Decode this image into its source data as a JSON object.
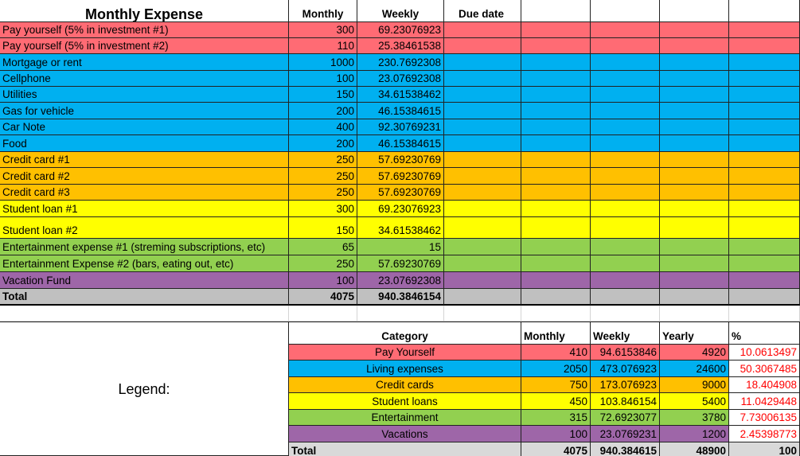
{
  "colors": {
    "pay": "#ff6b74",
    "living": "#00b0f0",
    "credit": "#ffc000",
    "student": "#ffff00",
    "entertainment": "#92d050",
    "vacation": "#9e66a8",
    "total": "#c0c0c0",
    "legend_total": "#d9d9d9",
    "percent_text": "#ff0000"
  },
  "expense_table": {
    "title": "Monthly Expense",
    "headers": {
      "monthly": "Monthly",
      "weekly": "Weekly",
      "due": "Due date"
    },
    "rows": [
      {
        "name": "Pay yourself (5% in investment #1)",
        "monthly": "300",
        "weekly": "69.23076923",
        "group": "pay"
      },
      {
        "name": "Pay yourself (5% in investment #2)",
        "monthly": "110",
        "weekly": "25.38461538",
        "group": "pay"
      },
      {
        "name": "Mortgage or rent",
        "monthly": "1000",
        "weekly": "230.7692308",
        "group": "living"
      },
      {
        "name": "Cellphone",
        "monthly": "100",
        "weekly": "23.07692308",
        "group": "living"
      },
      {
        "name": "Utilities",
        "monthly": "150",
        "weekly": "34.61538462",
        "group": "living"
      },
      {
        "name": "Gas for vehicle",
        "monthly": "200",
        "weekly": "46.15384615",
        "group": "living"
      },
      {
        "name": "Car Note",
        "monthly": "400",
        "weekly": "92.30769231",
        "group": "living"
      },
      {
        "name": "Food",
        "monthly": "200",
        "weekly": "46.15384615",
        "group": "living"
      },
      {
        "name": "Credit card #1",
        "monthly": "250",
        "weekly": "57.69230769",
        "group": "credit"
      },
      {
        "name": "Credit card #2",
        "monthly": "250",
        "weekly": "57.69230769",
        "group": "credit"
      },
      {
        "name": "Credit card #3",
        "monthly": "250",
        "weekly": "57.69230769",
        "group": "credit"
      },
      {
        "name": "Student loan #1",
        "monthly": "300",
        "weekly": "69.23076923",
        "group": "student"
      },
      {
        "name": "Student loan #2",
        "monthly": "150",
        "weekly": "34.61538462",
        "group": "student"
      },
      {
        "name": "Entertainment expense #1 (streming subscriptions, etc)",
        "monthly": "65",
        "weekly": "15",
        "group": "entertainment"
      },
      {
        "name": "Entertainment Expense #2 (bars, eating out, etc)",
        "monthly": "250",
        "weekly": "57.69230769",
        "group": "entertainment"
      },
      {
        "name": "Vacation Fund",
        "monthly": "100",
        "weekly": "23.07692308",
        "group": "vacation"
      }
    ],
    "total": {
      "label": "Total",
      "monthly": "4075",
      "weekly": "940.3846154"
    }
  },
  "legend": {
    "label": "Legend:",
    "headers": {
      "category": "Category",
      "monthly": "Monthly",
      "weekly": "Weekly",
      "yearly": "Yearly",
      "percent": "%"
    },
    "rows": [
      {
        "category": "Pay Yourself",
        "monthly": "410",
        "weekly": "94.6153846",
        "yearly": "4920",
        "percent": "10.0613497",
        "group": "pay"
      },
      {
        "category": "Living expenses",
        "monthly": "2050",
        "weekly": "473.076923",
        "yearly": "24600",
        "percent": "50.3067485",
        "group": "living"
      },
      {
        "category": "Credit cards",
        "monthly": "750",
        "weekly": "173.076923",
        "yearly": "9000",
        "percent": "18.404908",
        "group": "credit"
      },
      {
        "category": "Student loans",
        "monthly": "450",
        "weekly": "103.846154",
        "yearly": "5400",
        "percent": "11.0429448",
        "group": "student"
      },
      {
        "category": "Entertainment",
        "monthly": "315",
        "weekly": "72.6923077",
        "yearly": "3780",
        "percent": "7.73006135",
        "group": "entertainment"
      },
      {
        "category": "Vacations",
        "monthly": "100",
        "weekly": "23.0769231",
        "yearly": "1200",
        "percent": "2.45398773",
        "group": "vacation"
      }
    ],
    "total": {
      "label": "Total",
      "monthly": "4075",
      "weekly": "940.384615",
      "yearly": "48900",
      "percent": "100"
    }
  }
}
